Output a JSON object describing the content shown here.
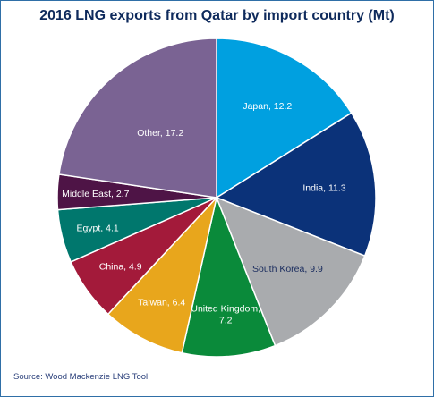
{
  "chart_data": {
    "type": "pie",
    "title": "2016 LNG exports from Qatar by import country (Mt)",
    "source": "Source: Wood Mackenzie LNG Tool",
    "slices": [
      {
        "label": "Japan",
        "value": 12.2,
        "color": "#00a0e0",
        "text_color": "#ffffff"
      },
      {
        "label": "India",
        "value": 11.3,
        "color": "#0b3279",
        "text_color": "#ffffff"
      },
      {
        "label": "South Korea",
        "value": 9.9,
        "color": "#a9abae",
        "text_color": "#1a2c5e"
      },
      {
        "label": "United Kingdom",
        "value": 7.2,
        "color": "#0a8a3a",
        "text_color": "#ffffff"
      },
      {
        "label": "Taiwan",
        "value": 6.4,
        "color": "#e8a61c",
        "text_color": "#ffffff"
      },
      {
        "label": "China",
        "value": 4.9,
        "color": "#a31a3a",
        "text_color": "#ffffff"
      },
      {
        "label": "Egypt",
        "value": 4.1,
        "color": "#00776d",
        "text_color": "#ffffff"
      },
      {
        "label": "Middle East",
        "value": 2.7,
        "color": "#4e1446",
        "text_color": "#ffffff"
      },
      {
        "label": "Other",
        "value": 17.2,
        "color": "#7a6393",
        "text_color": "#ffffff"
      }
    ]
  }
}
